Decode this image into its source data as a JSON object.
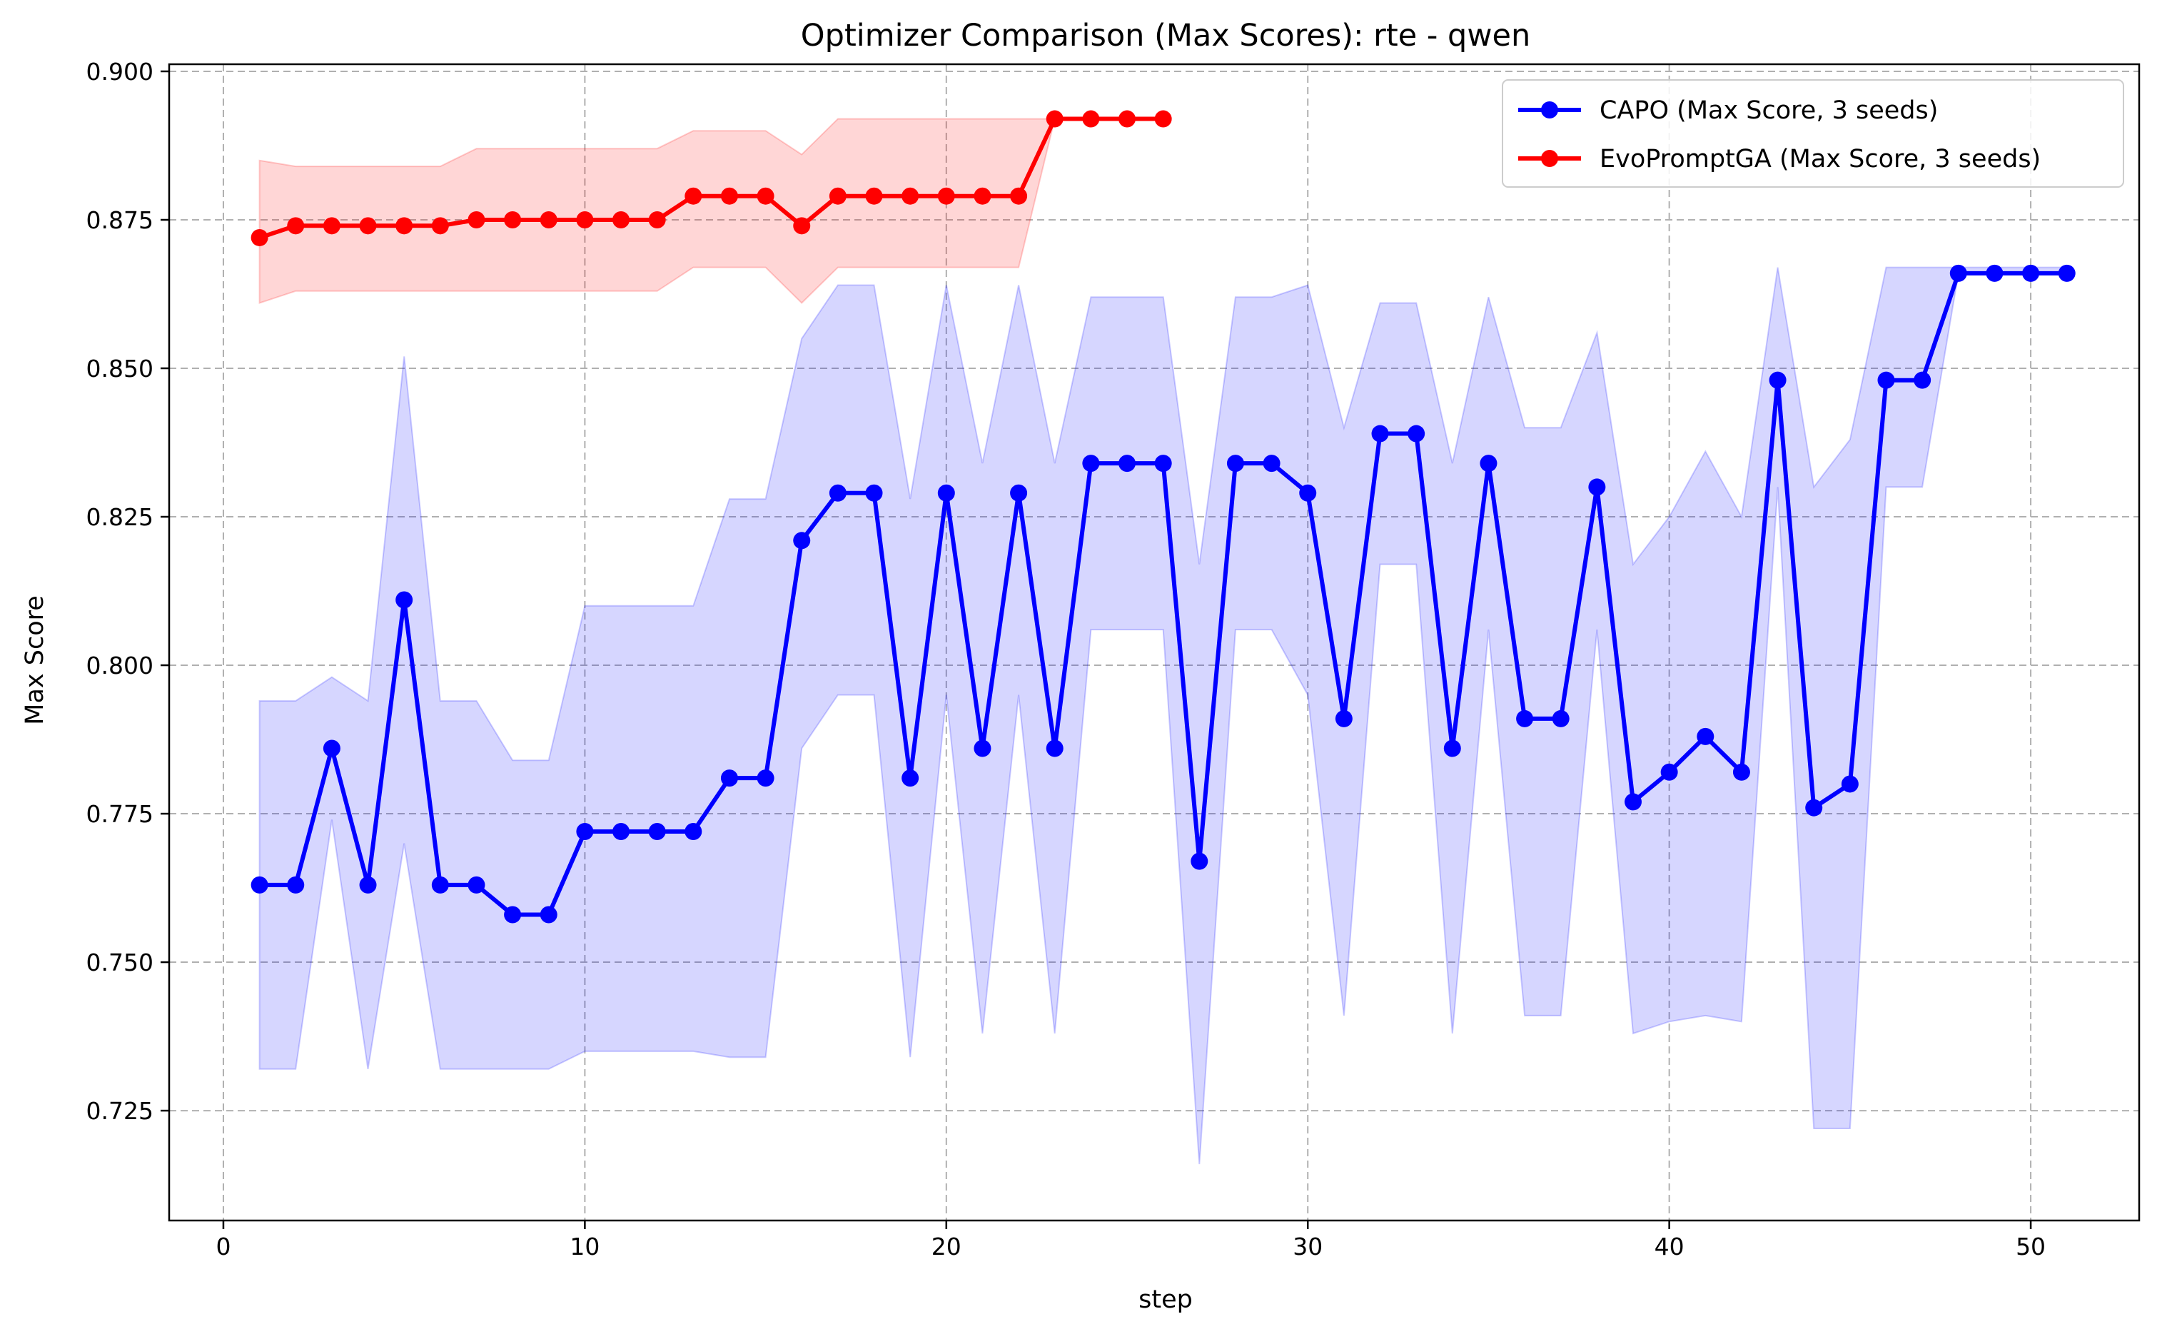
{
  "chart_data": {
    "type": "line",
    "title": "Optimizer Comparison (Max Scores): rte - qwen",
    "xlabel": "step",
    "ylabel": "Max Score",
    "xlim": [
      -1.5,
      53
    ],
    "ylim": [
      0.7065,
      0.9012
    ],
    "xticks": [
      0,
      10,
      20,
      30,
      40,
      50
    ],
    "yticks": [
      0.725,
      0.75,
      0.775,
      0.8,
      0.825,
      0.85,
      0.875,
      0.9
    ],
    "grid": true,
    "legend_position": "top-right",
    "series": [
      {
        "name": "CAPO (Max Score, 3 seeds)",
        "color": "#0000ff",
        "band_color": "#0000ff",
        "x": [
          1,
          2,
          3,
          4,
          5,
          6,
          7,
          8,
          9,
          10,
          11,
          12,
          13,
          14,
          15,
          16,
          17,
          18,
          19,
          20,
          21,
          22,
          23,
          24,
          25,
          26,
          27,
          28,
          29,
          30,
          31,
          32,
          33,
          34,
          35,
          36,
          37,
          38,
          39,
          40,
          41,
          42,
          43,
          44,
          45,
          46,
          47,
          48,
          49,
          50,
          51
        ],
        "values": [
          0.763,
          0.763,
          0.786,
          0.763,
          0.811,
          0.763,
          0.763,
          0.758,
          0.758,
          0.772,
          0.772,
          0.772,
          0.772,
          0.781,
          0.781,
          0.821,
          0.829,
          0.829,
          0.781,
          0.829,
          0.786,
          0.829,
          0.786,
          0.834,
          0.834,
          0.834,
          0.767,
          0.834,
          0.834,
          0.829,
          0.791,
          0.839,
          0.839,
          0.786,
          0.834,
          0.791,
          0.791,
          0.83,
          0.777,
          0.782,
          0.788,
          0.782,
          0.848,
          0.776,
          0.78,
          0.848,
          0.848,
          0.866,
          0.866,
          0.866,
          0.866
        ],
        "upper": [
          0.794,
          0.794,
          0.798,
          0.794,
          0.852,
          0.794,
          0.794,
          0.784,
          0.784,
          0.81,
          0.81,
          0.81,
          0.81,
          0.828,
          0.828,
          0.855,
          0.864,
          0.864,
          0.828,
          0.864,
          0.834,
          0.864,
          0.834,
          0.862,
          0.862,
          0.862,
          0.817,
          0.862,
          0.862,
          0.864,
          0.84,
          0.861,
          0.861,
          0.834,
          0.862,
          0.84,
          0.84,
          0.856,
          0.817,
          0.825,
          0.836,
          0.825,
          0.867,
          0.83,
          0.838,
          0.867,
          0.867,
          0.867,
          0.867,
          0.867,
          0.867
        ],
        "lower": [
          0.732,
          0.732,
          0.774,
          0.732,
          0.77,
          0.732,
          0.732,
          0.732,
          0.732,
          0.735,
          0.735,
          0.735,
          0.735,
          0.734,
          0.734,
          0.786,
          0.795,
          0.795,
          0.734,
          0.795,
          0.738,
          0.795,
          0.738,
          0.806,
          0.806,
          0.806,
          0.716,
          0.806,
          0.806,
          0.795,
          0.741,
          0.817,
          0.817,
          0.738,
          0.806,
          0.741,
          0.741,
          0.806,
          0.738,
          0.74,
          0.741,
          0.74,
          0.83,
          0.722,
          0.722,
          0.83,
          0.83,
          0.866,
          0.866,
          0.866,
          0.866
        ]
      },
      {
        "name": "EvoPromptGA (Max Score, 3 seeds)",
        "color": "#ff0000",
        "band_color": "#ff0000",
        "x": [
          1,
          2,
          3,
          4,
          5,
          6,
          7,
          8,
          9,
          10,
          11,
          12,
          13,
          14,
          15,
          16,
          17,
          18,
          19,
          20,
          21,
          22,
          23,
          24,
          25,
          26
        ],
        "values": [
          0.872,
          0.874,
          0.874,
          0.874,
          0.874,
          0.874,
          0.875,
          0.875,
          0.875,
          0.875,
          0.875,
          0.875,
          0.879,
          0.879,
          0.879,
          0.874,
          0.879,
          0.879,
          0.879,
          0.879,
          0.879,
          0.879,
          0.892,
          0.892,
          0.892,
          0.892
        ],
        "upper": [
          0.885,
          0.884,
          0.884,
          0.884,
          0.884,
          0.884,
          0.887,
          0.887,
          0.887,
          0.887,
          0.887,
          0.887,
          0.89,
          0.89,
          0.89,
          0.886,
          0.892,
          0.892,
          0.892,
          0.892,
          0.892,
          0.892,
          0.892,
          0.892,
          0.892,
          0.892
        ],
        "lower": [
          0.861,
          0.863,
          0.863,
          0.863,
          0.863,
          0.863,
          0.863,
          0.863,
          0.863,
          0.863,
          0.863,
          0.863,
          0.867,
          0.867,
          0.867,
          0.861,
          0.867,
          0.867,
          0.867,
          0.867,
          0.867,
          0.867,
          0.892,
          0.892,
          0.892,
          0.892
        ]
      }
    ]
  }
}
